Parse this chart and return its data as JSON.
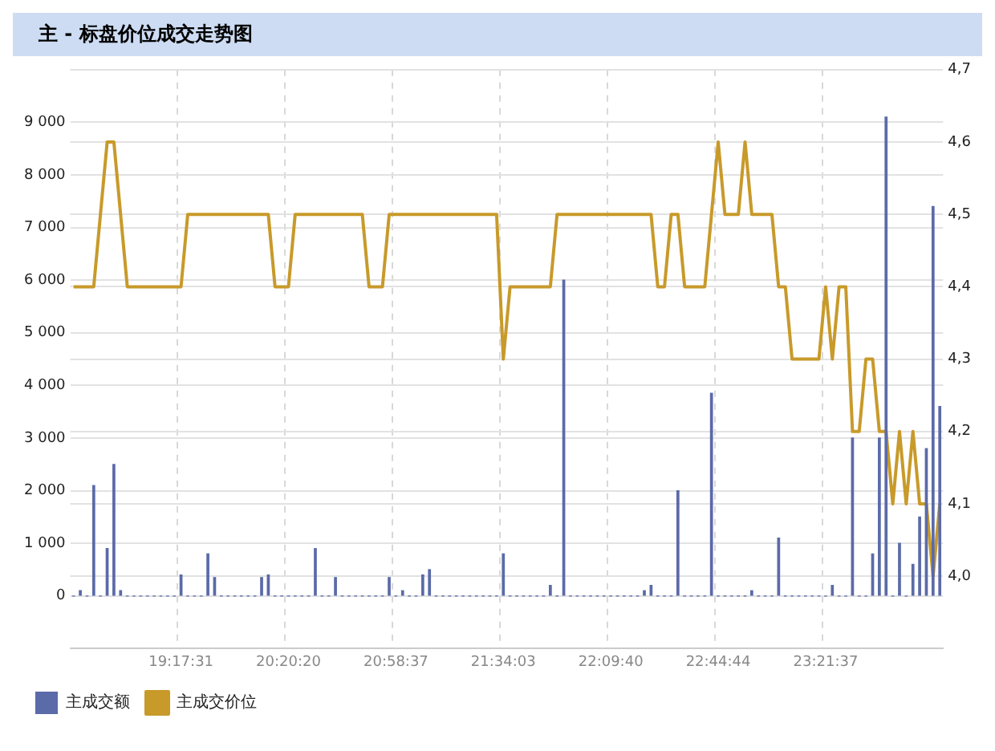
{
  "chart_data": {
    "type": "bar",
    "title": "主 - 标盘价位成交走势图",
    "categories": [
      null,
      null,
      null,
      null,
      null,
      null,
      null,
      null,
      null,
      null,
      null,
      null,
      null,
      null,
      null,
      null,
      "19:17:31",
      null,
      null,
      null,
      null,
      null,
      null,
      null,
      null,
      null,
      null,
      null,
      null,
      null,
      null,
      null,
      "20:20:20",
      null,
      null,
      null,
      null,
      null,
      null,
      null,
      null,
      null,
      null,
      null,
      null,
      null,
      null,
      null,
      "20:58:37",
      null,
      null,
      null,
      null,
      null,
      null,
      null,
      null,
      null,
      null,
      null,
      null,
      null,
      null,
      null,
      "21:34:03",
      null,
      null,
      null,
      null,
      null,
      null,
      null,
      null,
      null,
      null,
      null,
      null,
      null,
      null,
      null,
      "22:09:40",
      null,
      null,
      null,
      null,
      null,
      null,
      null,
      null,
      null,
      null,
      null,
      null,
      null,
      null,
      null,
      "22:44:44",
      null,
      null,
      null,
      null,
      null,
      null,
      null,
      null,
      null,
      null,
      null,
      null,
      null,
      null,
      null,
      "23:21:37",
      null,
      null,
      null,
      null,
      null,
      null,
      null,
      null,
      null,
      null,
      null,
      null,
      null,
      null,
      null,
      null,
      null
    ],
    "series": [
      {
        "name": "主成交额",
        "color": "#5b6aa8",
        "values": [
          0,
          100,
          0,
          2100,
          0,
          900,
          2500,
          100,
          0,
          0,
          0,
          0,
          0,
          0,
          0,
          0,
          400,
          0,
          0,
          0,
          800,
          350,
          0,
          0,
          0,
          0,
          0,
          0,
          350,
          400,
          0,
          0,
          0,
          0,
          0,
          0,
          900,
          0,
          0,
          350,
          0,
          0,
          0,
          0,
          0,
          0,
          0,
          350,
          0,
          100,
          0,
          0,
          400,
          500,
          0,
          0,
          0,
          0,
          0,
          0,
          0,
          0,
          0,
          0,
          800,
          0,
          0,
          0,
          0,
          0,
          0,
          200,
          0,
          6000,
          0,
          0,
          0,
          0,
          0,
          0,
          0,
          0,
          0,
          0,
          0,
          100,
          200,
          0,
          0,
          0,
          2000,
          0,
          0,
          0,
          0,
          3850,
          0,
          0,
          0,
          0,
          0,
          100,
          0,
          0,
          0,
          1100,
          0,
          0,
          0,
          0,
          0,
          0,
          0,
          200,
          0,
          0,
          3000,
          0,
          0,
          800,
          3000,
          9100,
          0,
          1000,
          0,
          600,
          1500,
          2800,
          7400,
          3600
        ]
      },
      {
        "name": "主成交价位",
        "type": "line",
        "axis": "y2",
        "color": "#c89a2a",
        "values": [
          4.4,
          4.4,
          4.4,
          4.4,
          4.5,
          4.6,
          4.6,
          4.5,
          4.4,
          4.4,
          4.4,
          4.4,
          4.4,
          4.4,
          4.4,
          4.4,
          4.4,
          4.5,
          4.5,
          4.5,
          4.5,
          4.5,
          4.5,
          4.5,
          4.5,
          4.5,
          4.5,
          4.5,
          4.5,
          4.5,
          4.4,
          4.4,
          4.4,
          4.5,
          4.5,
          4.5,
          4.5,
          4.5,
          4.5,
          4.5,
          4.5,
          4.5,
          4.5,
          4.5,
          4.4,
          4.4,
          4.4,
          4.5,
          4.5,
          4.5,
          4.5,
          4.5,
          4.5,
          4.5,
          4.5,
          4.5,
          4.5,
          4.5,
          4.5,
          4.5,
          4.5,
          4.5,
          4.5,
          4.5,
          4.3,
          4.4,
          4.4,
          4.4,
          4.4,
          4.4,
          4.4,
          4.4,
          4.5,
          4.5,
          4.5,
          4.5,
          4.5,
          4.5,
          4.5,
          4.5,
          4.5,
          4.5,
          4.5,
          4.5,
          4.5,
          4.5,
          4.5,
          4.4,
          4.4,
          4.5,
          4.5,
          4.4,
          4.4,
          4.4,
          4.4,
          4.5,
          4.6,
          4.5,
          4.5,
          4.5,
          4.6,
          4.5,
          4.5,
          4.5,
          4.5,
          4.4,
          4.4,
          4.3,
          4.3,
          4.3,
          4.3,
          4.3,
          4.4,
          4.3,
          4.4,
          4.4,
          4.2,
          4.2,
          4.3,
          4.3,
          4.2,
          4.2,
          4.1,
          4.2,
          4.1,
          4.2,
          4.1,
          4.1,
          4.0,
          4.1
        ]
      }
    ],
    "ylim": [
      -1000,
      10000
    ],
    "yticks": [
      0,
      {
        "value": 1000,
        "label": "1 000"
      },
      {
        "value": 2000,
        "label": "2 000"
      },
      {
        "value": 3000,
        "label": "3 000"
      },
      {
        "value": 4000,
        "label": "4 000"
      },
      {
        "value": 5000,
        "label": "5 000"
      },
      {
        "value": 6000,
        "label": "6 000"
      },
      {
        "value": 7000,
        "label": "7 000"
      },
      {
        "value": 8000,
        "label": "8 000"
      },
      {
        "value": 9000,
        "label": "9 000"
      }
    ],
    "y2lim": [
      3.9,
      4.7
    ],
    "y2ticks": [
      {
        "value": 4.0,
        "label": "4,0"
      },
      {
        "value": 4.1,
        "label": "4,1"
      },
      {
        "value": 4.2,
        "label": "4,2"
      },
      {
        "value": 4.3,
        "label": "4,3"
      },
      {
        "value": 4.4,
        "label": "4,4"
      },
      {
        "value": 4.5,
        "label": "4,5"
      },
      {
        "value": 4.6,
        "label": "4,6"
      },
      {
        "value": 4.7,
        "label": "4,7"
      }
    ],
    "grid": true,
    "legend": "bottom left"
  }
}
